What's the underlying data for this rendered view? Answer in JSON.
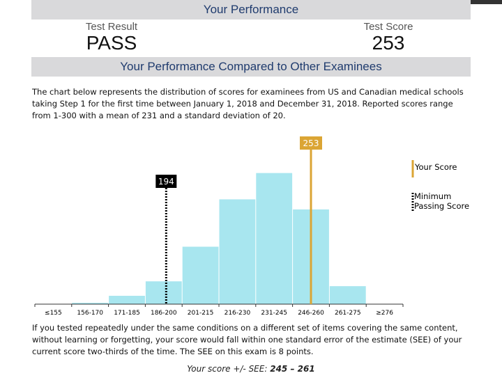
{
  "header": {
    "title": "Your Performance",
    "result_label": "Test Result",
    "result": "PASS",
    "score_label": "Test Score",
    "score": 253
  },
  "section_title": "Your Performance Compared to Other Examinees",
  "description": "The chart below represents the distribution of scores for examinees from US and Canadian medical schools taking Step 1 for the first time between January 1, 2018 and December 31, 2018. Reported scores range from 1-300 with a mean of 231 and a standard deviation of 20.",
  "chart": {
    "type": "bar",
    "categories": [
      "≤155",
      "156-170",
      "171-185",
      "186-200",
      "201-215",
      "216-230",
      "231-245",
      "246-260",
      "261-275",
      "≥276"
    ],
    "values": [
      0,
      0.3,
      1.9,
      5.2,
      13.1,
      23.9,
      29.9,
      21.6,
      4.1,
      0
    ],
    "color": "#a8e6ef",
    "your_score": 253,
    "your_score_color": "#dba534",
    "passing_score": 194,
    "passing_color": "#000000",
    "legend": [
      "Your Score",
      "Minimum Passing Score"
    ]
  },
  "see_note": "If you tested repeatedly under the same conditions on a different set of items covering the same content, without learning or forgetting, your score would fall within one standard error of the estimate (SEE) of your current score two-thirds of the time. The SEE on this exam is 8 points.",
  "see_range": {
    "label": "Your score +/- SEE:",
    "value": "245 – 261"
  }
}
